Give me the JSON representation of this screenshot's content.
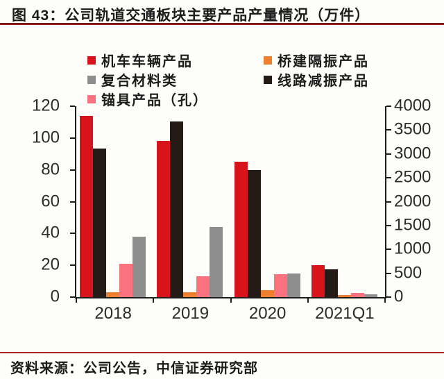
{
  "page": {
    "title": "图 43：公司轨道交通板块主要产品产量情况（万件）",
    "source_note": "资料来源：公司公告，中信证券研究部",
    "accent_color": "#a92520",
    "background": "#fdfdf9"
  },
  "legend": {
    "items": [
      {
        "label": "机车车辆产品",
        "color": "#d7141c"
      },
      {
        "label": "桥建隔振产品",
        "color": "#ed7f2f"
      },
      {
        "label": "复合材料类",
        "color": "#8e8e8e"
      },
      {
        "label": "线路减振产品",
        "color": "#241a16"
      },
      {
        "label": "锚具产品（孔）",
        "color": "#f9727e"
      }
    ]
  },
  "chart_data": {
    "type": "bar",
    "title": "公司轨道交通板块主要产品产量情况（万件）",
    "categories": [
      "2018",
      "2019",
      "2020",
      "2021Q1"
    ],
    "series": [
      {
        "key": "locomotive-rolling-stock",
        "name": "机车车辆产品",
        "color": "#d7141c",
        "values": [
          114,
          98,
          85,
          20
        ]
      },
      {
        "key": "track-vibration-damping",
        "name": "线路减振产品",
        "color": "#241a16",
        "values": [
          93.5,
          110.5,
          80,
          17.5
        ]
      },
      {
        "key": "bridge-vibration-isolation",
        "name": "桥建隔振产品",
        "color": "#ed7f2f",
        "values": [
          3,
          3,
          4.5,
          1.5
        ]
      },
      {
        "key": "anchorage-products",
        "name": "锚具产品（孔）",
        "color": "#f9727e",
        "values": [
          21,
          13,
          14.5,
          2.8
        ]
      },
      {
        "key": "composite-materials",
        "name": "复合材料类",
        "color": "#8e8e8e",
        "values": [
          38,
          44,
          15,
          1.8
        ]
      }
    ],
    "left_axis": {
      "max": 120,
      "ticks": [
        0,
        20,
        40,
        60,
        80,
        100,
        120
      ]
    },
    "right_axis": {
      "max": 4000,
      "ticks": [
        0,
        500,
        1000,
        1500,
        2000,
        2500,
        3000,
        3500,
        4000
      ]
    },
    "grid": false,
    "legend_position": "top",
    "bar_order": [
      "机车车辆产品",
      "线路减振产品",
      "桥建隔振产品",
      "锚具产品（孔）",
      "复合材料类"
    ]
  }
}
